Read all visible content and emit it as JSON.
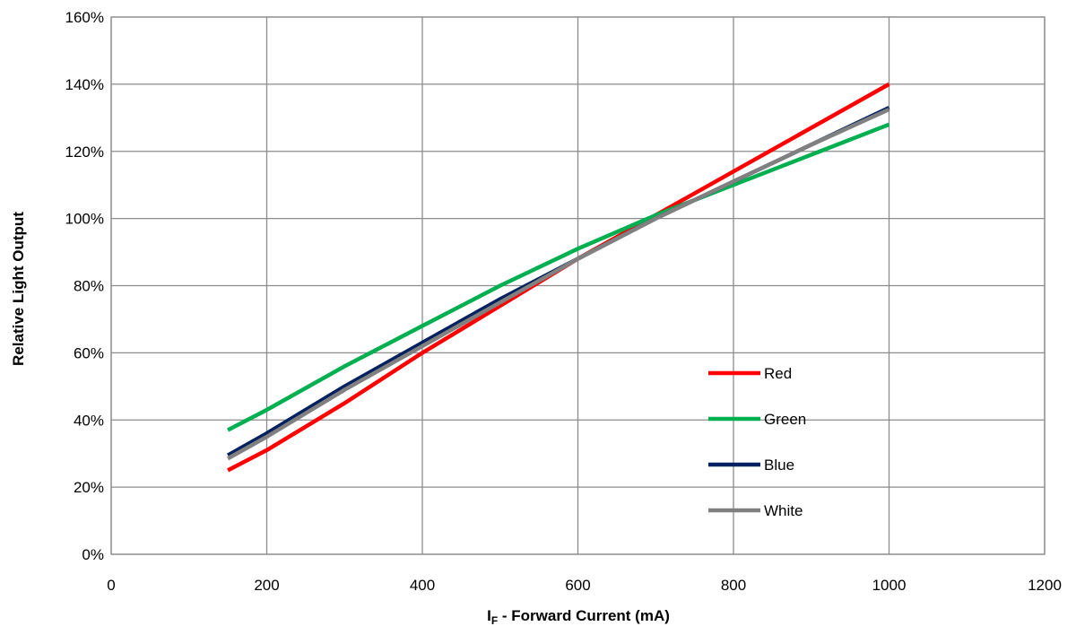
{
  "chart_data": {
    "type": "line",
    "title": "",
    "xlabel_main": "I",
    "xlabel_sub": "F",
    "xlabel_rest": " - Forward Current (mA)",
    "ylabel": "Relative Light Output",
    "xlim": [
      0,
      1200
    ],
    "ylim": [
      0,
      160
    ],
    "x_ticks": [
      0,
      200,
      400,
      600,
      800,
      1000,
      1200
    ],
    "x_tick_labels": [
      "0",
      "200",
      "400",
      "600",
      "800",
      "1000",
      "1200"
    ],
    "y_ticks": [
      0,
      20,
      40,
      60,
      80,
      100,
      120,
      140,
      160
    ],
    "y_tick_labels": [
      "0%",
      "20%",
      "40%",
      "60%",
      "80%",
      "100%",
      "120%",
      "140%",
      "160%"
    ],
    "grid": true,
    "legend_position": "lower-right inside plot",
    "x": [
      150,
      200,
      300,
      400,
      500,
      600,
      700,
      800,
      900,
      1000
    ],
    "series": [
      {
        "name": "Red",
        "color": "#ff0000",
        "values": [
          25,
          31,
          45,
          60,
          74,
          88,
          101,
          114,
          127,
          140
        ]
      },
      {
        "name": "Green",
        "color": "#00b050",
        "values": [
          37,
          43,
          56,
          68,
          80,
          91,
          101,
          110,
          119,
          128
        ]
      },
      {
        "name": "Blue",
        "color": "#002060",
        "values": [
          29.5,
          36,
          50,
          63,
          76,
          88,
          100,
          111,
          122,
          133
        ]
      },
      {
        "name": "White",
        "color": "#808080",
        "values": [
          28.5,
          35,
          49,
          62,
          75,
          88,
          100,
          111,
          122,
          132.5
        ]
      }
    ]
  }
}
